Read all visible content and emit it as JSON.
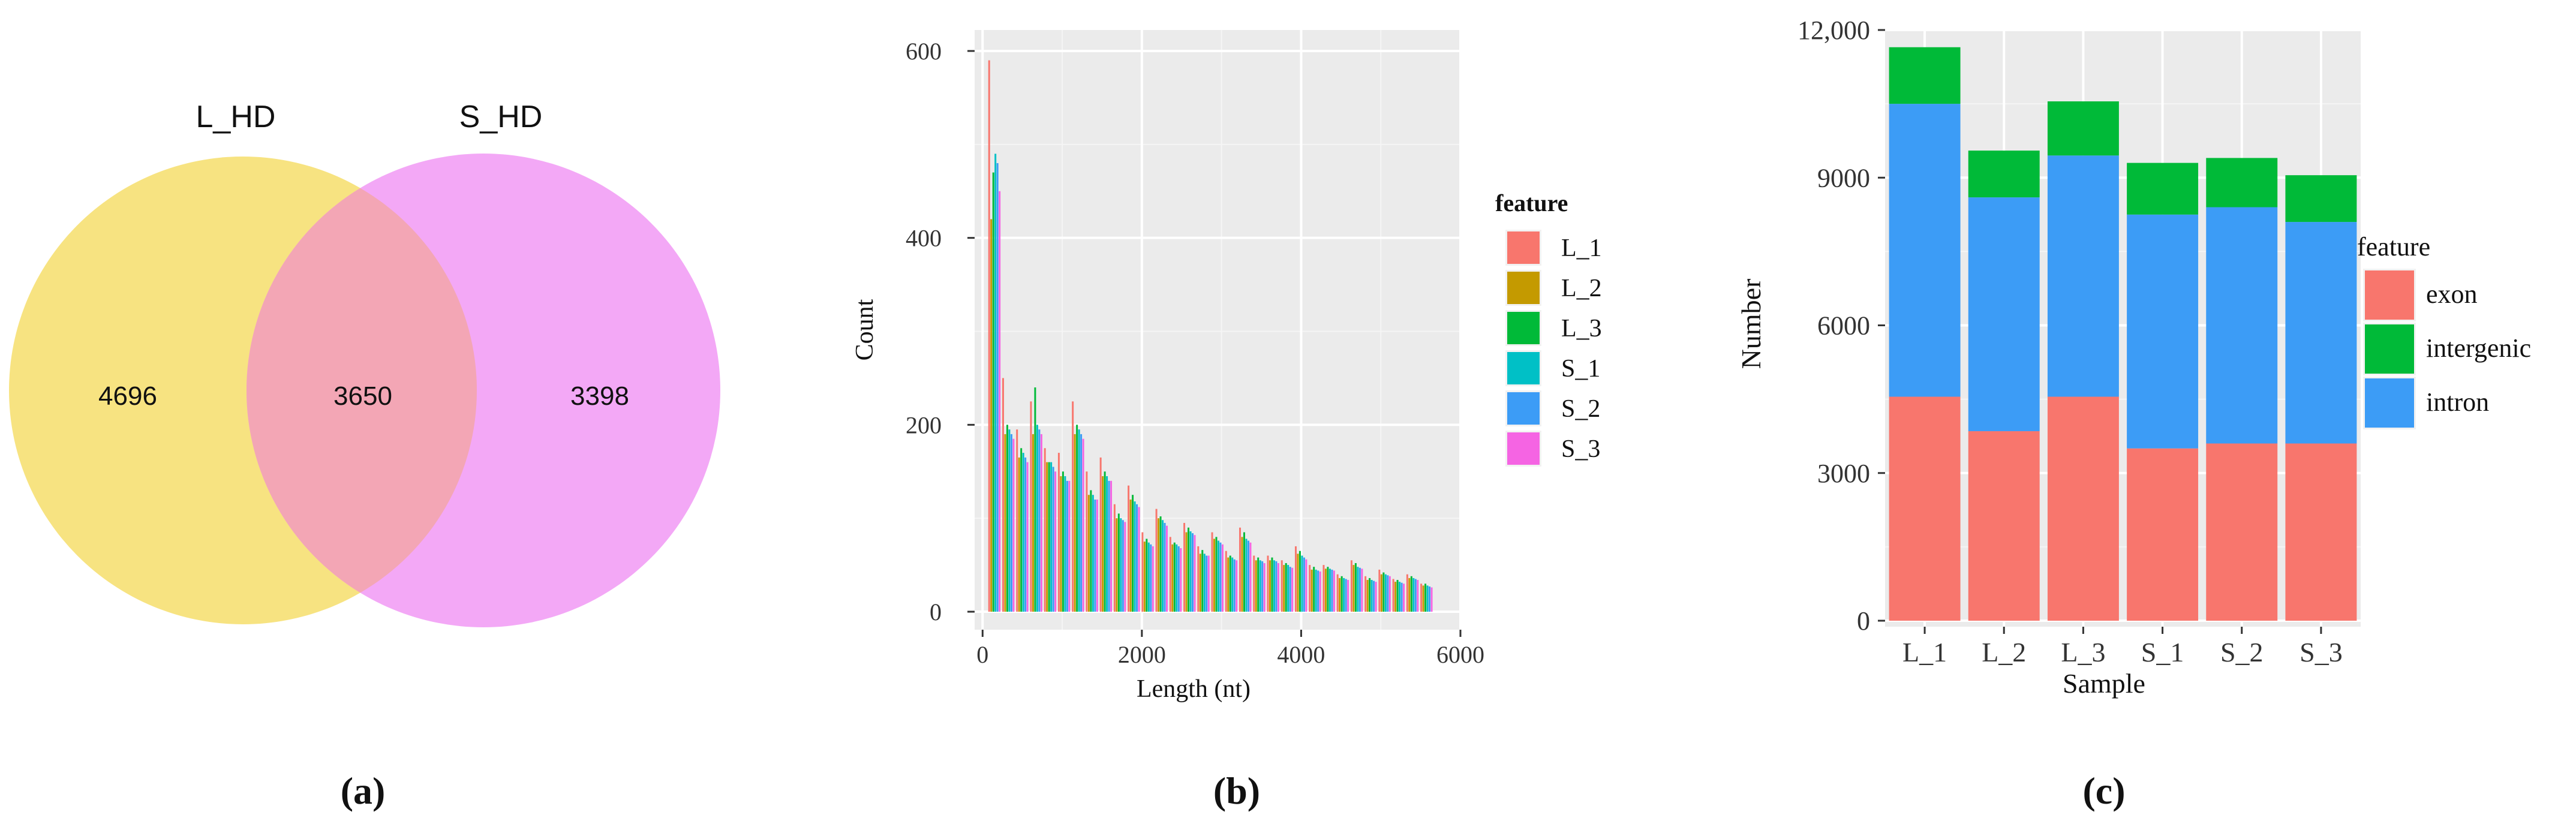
{
  "chart_data": [
    {
      "type": "venn",
      "panel_label": "(a)",
      "sets": [
        {
          "name": "L_HD",
          "color": "#F7E27A"
        },
        {
          "name": "S_HD",
          "color": "#F2A3F6"
        }
      ],
      "overlap_color": "#F3A6B5",
      "values": {
        "L_HD_only": "4696",
        "intersection": "3650",
        "S_HD_only": "3398"
      }
    },
    {
      "type": "bar",
      "panel_label": "(b)",
      "xlabel": "Length (nt)",
      "ylabel": "Count",
      "xlim": [
        -100,
        6000
      ],
      "ylim": [
        0,
        600
      ],
      "xticks": [
        "0",
        "2000",
        "4000",
        "6000"
      ],
      "yticks": [
        "0",
        "200",
        "400",
        "600"
      ],
      "grid": true,
      "legend_title": "feature",
      "legend_position": "right",
      "x": [
        150,
        325,
        500,
        675,
        850,
        1025,
        1200,
        1375,
        1550,
        1725,
        1900,
        2075,
        2250,
        2425,
        2600,
        2775,
        2950,
        3125,
        3300,
        3475,
        3650,
        3825,
        4000,
        4175,
        4350,
        4525,
        4700,
        4875,
        5050,
        5225,
        5400,
        5575
      ],
      "series": [
        {
          "name": "L_1",
          "color": "#F8766D",
          "values": [
            590,
            250,
            195,
            225,
            175,
            170,
            225,
            150,
            165,
            115,
            135,
            85,
            110,
            80,
            95,
            70,
            85,
            65,
            90,
            60,
            60,
            55,
            70,
            50,
            50,
            40,
            55,
            38,
            45,
            35,
            40,
            30
          ]
        },
        {
          "name": "L_2",
          "color": "#C49A00",
          "values": [
            420,
            190,
            165,
            190,
            160,
            145,
            190,
            125,
            145,
            100,
            120,
            75,
            100,
            72,
            85,
            62,
            78,
            58,
            80,
            55,
            55,
            50,
            62,
            45,
            46,
            36,
            50,
            34,
            40,
            32,
            36,
            28
          ]
        },
        {
          "name": "L_3",
          "color": "#00BA38",
          "values": [
            470,
            200,
            175,
            240,
            160,
            150,
            200,
            130,
            150,
            105,
            125,
            78,
            102,
            74,
            90,
            66,
            80,
            60,
            85,
            58,
            58,
            52,
            65,
            48,
            48,
            38,
            52,
            36,
            42,
            34,
            38,
            30
          ]
        },
        {
          "name": "S_1",
          "color": "#00C0C6",
          "values": [
            490,
            195,
            170,
            200,
            160,
            145,
            195,
            125,
            145,
            100,
            118,
            74,
            98,
            72,
            86,
            62,
            76,
            58,
            78,
            55,
            55,
            50,
            60,
            45,
            46,
            36,
            48,
            34,
            40,
            32,
            36,
            28
          ]
        },
        {
          "name": "S_2",
          "color": "#3C9CF6",
          "values": [
            480,
            190,
            165,
            195,
            155,
            140,
            190,
            120,
            140,
            98,
            115,
            72,
            95,
            70,
            84,
            60,
            74,
            56,
            76,
            54,
            54,
            48,
            58,
            44,
            45,
            35,
            47,
            33,
            39,
            31,
            35,
            27
          ]
        },
        {
          "name": "S_3",
          "color": "#F564E3",
          "values": [
            450,
            185,
            160,
            190,
            150,
            140,
            185,
            120,
            140,
            96,
            112,
            70,
            92,
            68,
            82,
            60,
            72,
            55,
            74,
            52,
            52,
            47,
            56,
            43,
            44,
            34,
            46,
            32,
            38,
            30,
            34,
            26
          ]
        }
      ]
    },
    {
      "type": "stacked_bar",
      "panel_label": "(c)",
      "xlabel": "Sample",
      "ylabel": "Number",
      "ylim": [
        0,
        12000
      ],
      "yticks": [
        "0",
        "3000",
        "6000",
        "9000",
        "12,000"
      ],
      "grid": true,
      "legend_title": "feature",
      "legend_position": "right",
      "categories": [
        "L_1",
        "L_2",
        "L_3",
        "S_1",
        "S_2",
        "S_3"
      ],
      "series": [
        {
          "name": "exon",
          "color": "#F8766D",
          "values": [
            4550,
            3850,
            4550,
            3500,
            3600,
            3600
          ]
        },
        {
          "name": "intron",
          "color": "#3C9CF6",
          "values": [
            5950,
            4750,
            4900,
            4750,
            4800,
            4500
          ]
        },
        {
          "name": "intergenic",
          "color": "#00BA38",
          "values": [
            1150,
            950,
            1100,
            1050,
            1000,
            950
          ]
        }
      ],
      "legend_order": [
        "exon",
        "intergenic",
        "intron"
      ]
    }
  ]
}
